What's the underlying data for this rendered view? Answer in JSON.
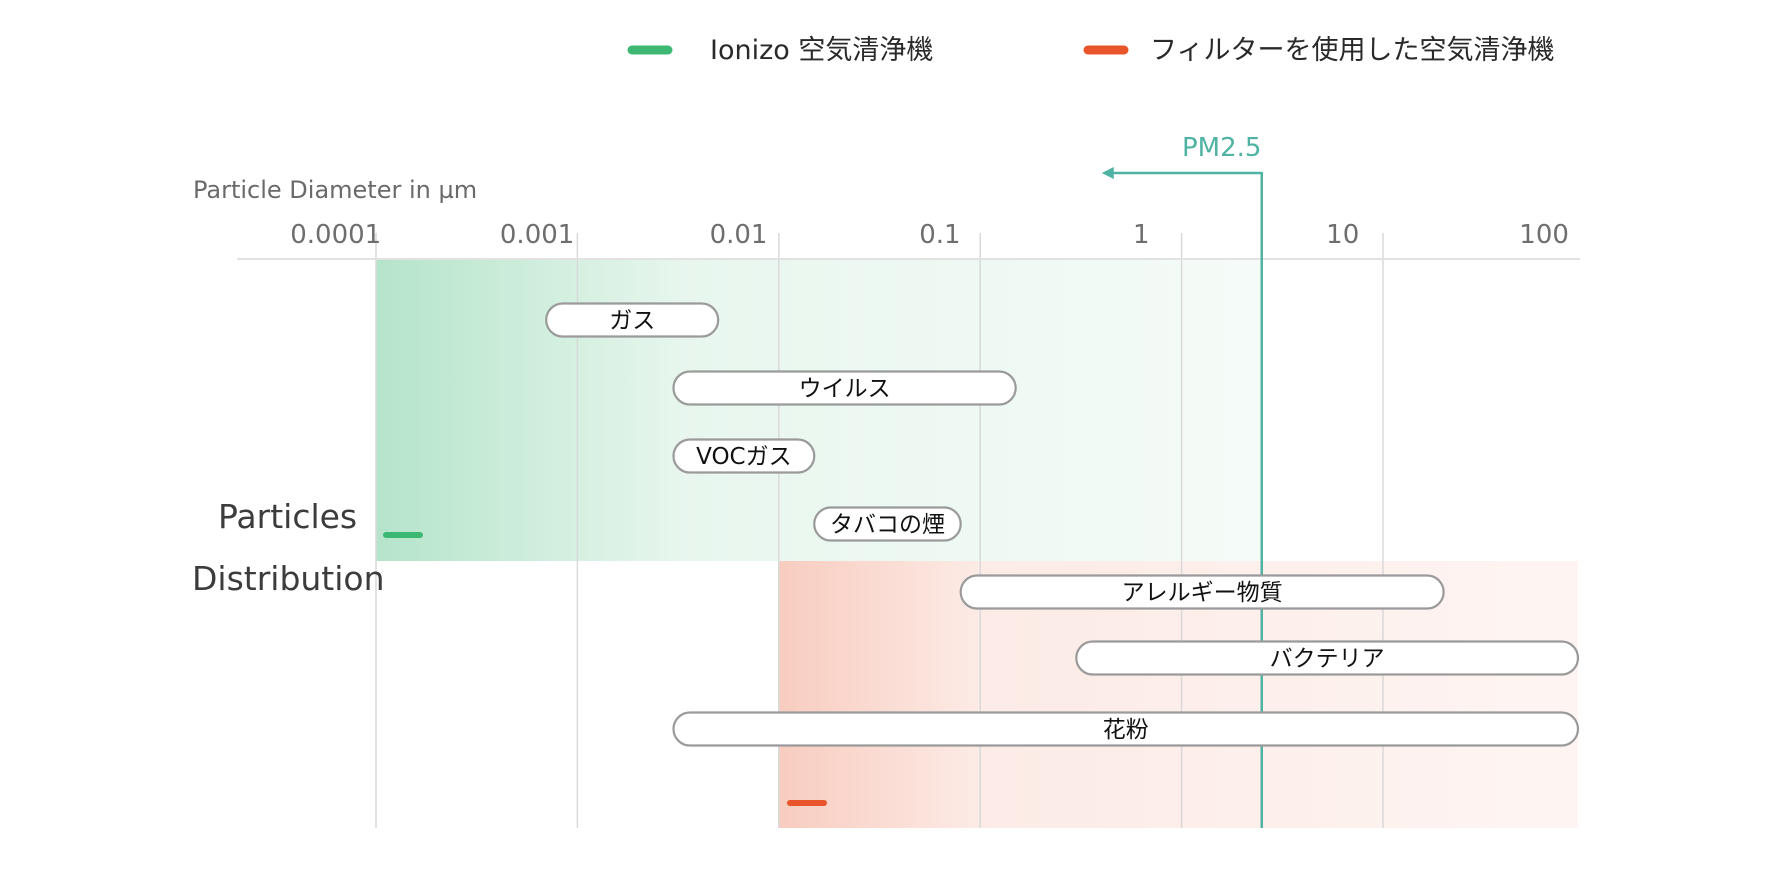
{
  "chart_data": {
    "type": "range",
    "x_axis": {
      "title": "Particle Diameter in µm",
      "scale": "log",
      "ticks": [
        "0.0001",
        "0.001",
        "0.01",
        "0.1",
        "1",
        "10",
        "100"
      ],
      "tick_values": [
        0.0001,
        0.001,
        0.01,
        0.1,
        1,
        10,
        100
      ],
      "range": [
        0.0001,
        100
      ]
    },
    "side_label": [
      "Particles",
      "Distribution"
    ],
    "legend": [
      {
        "label": "Ionizo 空気清浄機",
        "color": "#3db873"
      },
      {
        "label": "フィルターを使用した空気清浄機",
        "color": "#e8552b"
      }
    ],
    "coverage_regions": [
      {
        "series": "Ionizo 空気清浄機",
        "from": 0.0001,
        "to": 2.5,
        "color": "#3db873"
      },
      {
        "series": "フィルターを使用した空気清浄機",
        "from": 0.01,
        "to": 100,
        "color": "#e8552b"
      }
    ],
    "reference_line": {
      "label": "PM2.5",
      "value": 2.5,
      "color": "#4fb3a3"
    },
    "ranges": [
      {
        "label": "ガス",
        "from": 0.0007,
        "to": 0.005
      },
      {
        "label": "ウイルス",
        "from": 0.003,
        "to": 0.15
      },
      {
        "label": "VOCガス",
        "from": 0.003,
        "to": 0.015
      },
      {
        "label": "タバコの煙",
        "from": 0.015,
        "to": 0.08
      },
      {
        "label": "アレルギー物質",
        "from": 0.08,
        "to": 20
      },
      {
        "label": "バクテリア",
        "from": 0.3,
        "to": 100
      },
      {
        "label": "花粉",
        "from": 0.003,
        "to": 180
      }
    ]
  }
}
